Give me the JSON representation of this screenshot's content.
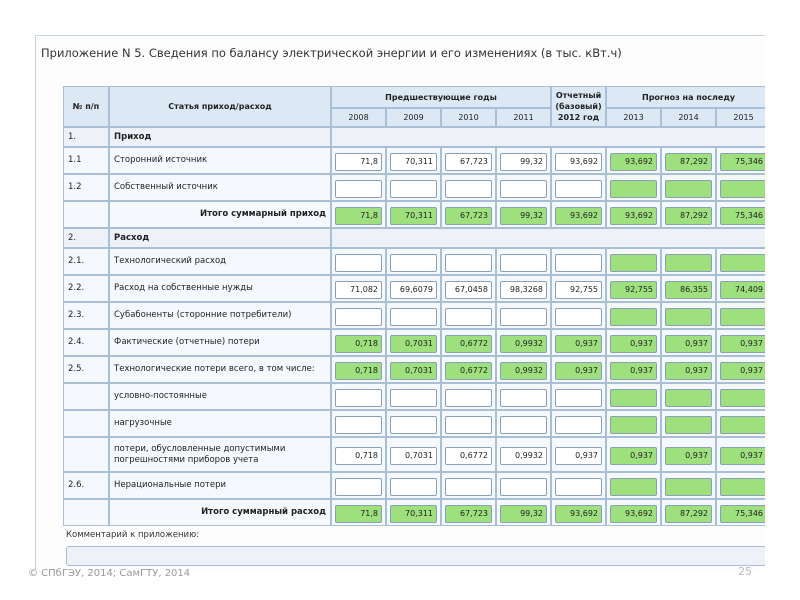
{
  "window": {
    "title": "Приложение N 5. Сведения по балансу электрической энергии и его изменениях (в тыс. кВт.ч)"
  },
  "table": {
    "header": {
      "num": "№ п/п",
      "label": "Статья приход/расход",
      "groups": [
        {
          "label": "Предшествующие годы",
          "span": 4
        },
        {
          "label": "Отчетный (базовый) 2012 год",
          "span": 1
        },
        {
          "label": "Прогноз на последу",
          "span": 3
        }
      ],
      "years": [
        "2008",
        "2009",
        "2010",
        "2011",
        null,
        "2013",
        "2014",
        "2015"
      ]
    },
    "input_color": "#ffffff",
    "calc_color": "#9fe07e",
    "rows": [
      {
        "num": "1.",
        "label": "Приход",
        "kind": "section"
      },
      {
        "num": "1.1",
        "label": "Сторонний источник",
        "kind": "input",
        "cells": [
          "71,8",
          "70,311",
          "67,723",
          "99,32",
          "93,692",
          "93,692",
          "87,292",
          "75,346"
        ]
      },
      {
        "num": "1.2",
        "label": "Собственный источник",
        "kind": "input",
        "cells": [
          null,
          null,
          null,
          null,
          null,
          null,
          null,
          null
        ]
      },
      {
        "num": null,
        "label": "Итого суммарный приход",
        "kind": "total",
        "cells": [
          "71,8",
          "70,311",
          "67,723",
          "99,32",
          "93,692",
          "93,692",
          "87,292",
          "75,346"
        ]
      },
      {
        "num": "2.",
        "label": "Расход",
        "kind": "section"
      },
      {
        "num": "2.1.",
        "label": "Технологический расход",
        "kind": "input",
        "cells": [
          null,
          null,
          null,
          null,
          null,
          null,
          null,
          null
        ]
      },
      {
        "num": "2.2.",
        "label": "Расход на собственные нужды",
        "kind": "input",
        "cells": [
          "71,082",
          "69,6079",
          "67,0458",
          "98,3268",
          "92,755",
          "92,755",
          "86,355",
          "74,409"
        ]
      },
      {
        "num": "2.3.",
        "label": "Субабоненты (сторонние потребители)",
        "kind": "input",
        "cells": [
          null,
          null,
          null,
          null,
          null,
          null,
          null,
          null
        ]
      },
      {
        "num": "2.4.",
        "label": "Фактические (отчетные) потери",
        "kind": "calc",
        "cells": [
          "0,718",
          "0,7031",
          "0,6772",
          "0,9932",
          "0,937",
          "0,937",
          "0,937",
          "0,937"
        ]
      },
      {
        "num": "2.5.",
        "label": "Технологические потери всего, в том числе:",
        "kind": "calc",
        "cells": [
          "0,718",
          "0,7031",
          "0,6772",
          "0,9932",
          "0,937",
          "0,937",
          "0,937",
          "0,937"
        ]
      },
      {
        "num": null,
        "label": "условно-постоянные",
        "kind": "input",
        "cells": [
          null,
          null,
          null,
          null,
          null,
          null,
          null,
          null
        ]
      },
      {
        "num": null,
        "label": "нагрузочные",
        "kind": "input",
        "cells": [
          null,
          null,
          null,
          null,
          null,
          null,
          null,
          null
        ]
      },
      {
        "num": null,
        "label": "потери, обусловленные допустимыми погрешностями приборов учета",
        "kind": "input",
        "cells": [
          "0,718",
          "0,7031",
          "0,6772",
          "0,9932",
          "0,937",
          "0,937",
          "0,937",
          "0,937"
        ]
      },
      {
        "num": "2.6.",
        "label": "Нерациональные потери",
        "kind": "input",
        "cells": [
          null,
          null,
          null,
          null,
          null,
          null,
          null,
          null
        ]
      },
      {
        "num": null,
        "label": "Итого суммарный расход",
        "kind": "total",
        "cells": [
          "71,8",
          "70,311",
          "67,723",
          "99,32",
          "93,692",
          "93,692",
          "87,292",
          "75,346"
        ]
      }
    ]
  },
  "comment": {
    "label": "Комментарий к приложению:"
  },
  "footer": {
    "copyright": "© СПбГЭУ, 2014; СамГТУ, 2014",
    "page": "25"
  }
}
